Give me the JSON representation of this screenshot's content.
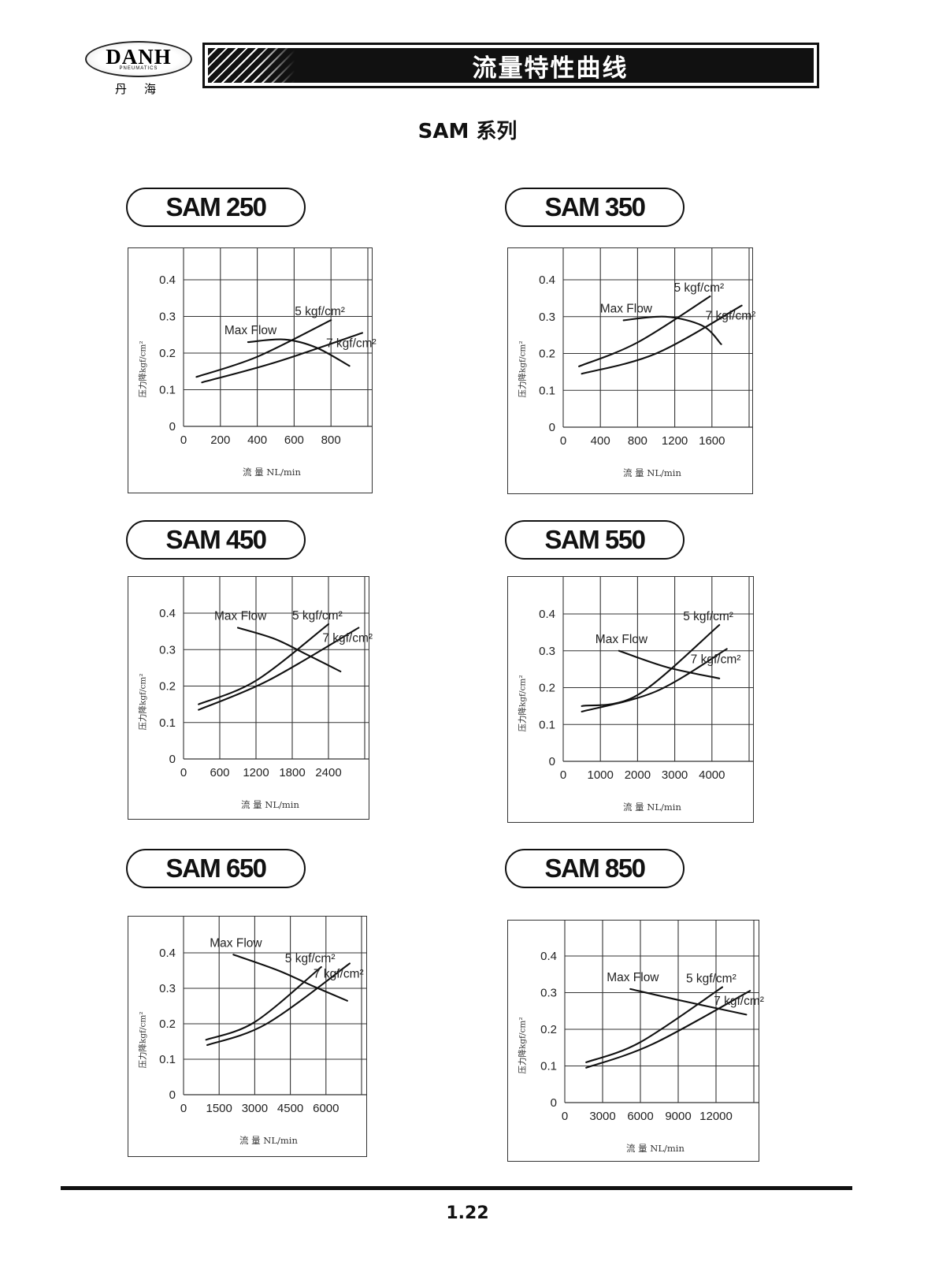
{
  "header": {
    "logo_word": "DANH",
    "logo_subtitle": "PNEUMATICS",
    "logo_chinese": "丹海",
    "title": "流量特性曲线"
  },
  "series_title": "SAM 系列",
  "footer": {
    "page_number": "1.22"
  },
  "axis_texts": {
    "ylabel": "压力降kgf/cm²",
    "xlabel": "流 量 NL/min"
  },
  "chart_data": [
    {
      "type": "line",
      "model": "SAM 250",
      "xlabel": "流 量 NL/min",
      "ylabel": "压力降kgf/cm²",
      "xlim": [
        0,
        1000
      ],
      "ylim": [
        0,
        0.4
      ],
      "xticks": [
        0,
        200,
        400,
        600,
        800
      ],
      "yticks": [
        0,
        0.1,
        0.2,
        0.3,
        0.4
      ],
      "grid": true,
      "series": [
        {
          "name": "5 kgf/cm²",
          "x": [
            70,
            400,
            800
          ],
          "y": [
            0.135,
            0.19,
            0.29
          ]
        },
        {
          "name": "7 kgf/cm²",
          "x": [
            100,
            500,
            970
          ],
          "y": [
            0.12,
            0.175,
            0.255
          ]
        },
        {
          "name": "Max Flow",
          "x": [
            350,
            550,
            720,
            900
          ],
          "y": [
            0.23,
            0.237,
            0.215,
            0.165
          ]
        }
      ]
    },
    {
      "type": "line",
      "model": "SAM 350",
      "xlabel": "流 量 NL/min",
      "ylabel": "压力降kgf/cm²",
      "xlim": [
        0,
        2000
      ],
      "ylim": [
        0,
        0.4
      ],
      "xticks": [
        0,
        400,
        800,
        1200,
        1600
      ],
      "yticks": [
        0,
        0.1,
        0.2,
        0.3,
        0.4
      ],
      "grid": true,
      "series": [
        {
          "name": "5 kgf/cm²",
          "x": [
            170,
            800,
            1580
          ],
          "y": [
            0.165,
            0.23,
            0.355
          ]
        },
        {
          "name": "7 kgf/cm²",
          "x": [
            200,
            1000,
            1920
          ],
          "y": [
            0.145,
            0.2,
            0.33
          ]
        },
        {
          "name": "Max Flow",
          "x": [
            650,
            1100,
            1500,
            1700
          ],
          "y": [
            0.29,
            0.3,
            0.275,
            0.225
          ]
        }
      ]
    },
    {
      "type": "line",
      "model": "SAM 450",
      "xlabel": "流 量 NL/min",
      "ylabel": "压力降kgf/cm²",
      "xlim": [
        0,
        3000
      ],
      "ylim": [
        0,
        0.4
      ],
      "xticks": [
        0,
        600,
        1200,
        1800,
        2400
      ],
      "yticks": [
        0,
        0.1,
        0.2,
        0.3,
        0.4
      ],
      "grid": true,
      "series": [
        {
          "name": "5 kgf/cm²",
          "x": [
            250,
            1200,
            2400
          ],
          "y": [
            0.15,
            0.215,
            0.37
          ]
        },
        {
          "name": "7 kgf/cm²",
          "x": [
            250,
            1400,
            2900
          ],
          "y": [
            0.135,
            0.215,
            0.36
          ]
        },
        {
          "name": "Max Flow",
          "x": [
            900,
            1500,
            2000,
            2600
          ],
          "y": [
            0.36,
            0.33,
            0.29,
            0.24
          ]
        }
      ]
    },
    {
      "type": "line",
      "model": "SAM 550",
      "xlabel": "流 量 NL/min",
      "ylabel": "压力降kgf/cm²",
      "xlim": [
        0,
        5000
      ],
      "ylim": [
        0,
        0.4
      ],
      "xticks": [
        0,
        1000,
        2000,
        3000,
        4000
      ],
      "yticks": [
        0,
        0.1,
        0.2,
        0.3,
        0.4
      ],
      "grid": true,
      "series": [
        {
          "name": "5 kgf/cm²",
          "x": [
            500,
            2000,
            4200
          ],
          "y": [
            0.15,
            0.18,
            0.37
          ]
        },
        {
          "name": "7 kgf/cm²",
          "x": [
            500,
            2500,
            4400
          ],
          "y": [
            0.135,
            0.19,
            0.305
          ]
        },
        {
          "name": "Max Flow",
          "x": [
            1500,
            2800,
            4200
          ],
          "y": [
            0.3,
            0.255,
            0.225
          ]
        }
      ]
    },
    {
      "type": "line",
      "model": "SAM 650",
      "xlabel": "流 量 NL/min",
      "ylabel": "压力降kgf/cm²",
      "xlim": [
        0,
        7500
      ],
      "ylim": [
        0,
        0.4
      ],
      "xticks": [
        0,
        1500,
        3000,
        4500,
        6000
      ],
      "yticks": [
        0,
        0.1,
        0.2,
        0.3,
        0.4
      ],
      "grid": true,
      "series": [
        {
          "name": "5 kgf/cm²",
          "x": [
            950,
            3000,
            5800
          ],
          "y": [
            0.155,
            0.205,
            0.36
          ]
        },
        {
          "name": "7 kgf/cm²",
          "x": [
            1000,
            3500,
            7000
          ],
          "y": [
            0.14,
            0.2,
            0.37
          ]
        },
        {
          "name": "Max Flow",
          "x": [
            2100,
            4000,
            5500,
            6900
          ],
          "y": [
            0.395,
            0.35,
            0.305,
            0.265
          ]
        }
      ]
    },
    {
      "type": "line",
      "model": "SAM 850",
      "xlabel": "流 量 NL/min",
      "ylabel": "压力降kgf/cm²",
      "xlim": [
        0,
        15000
      ],
      "ylim": [
        0,
        0.4
      ],
      "xticks": [
        0,
        3000,
        6000,
        9000,
        12000
      ],
      "yticks": [
        0,
        0.1,
        0.2,
        0.3,
        0.4
      ],
      "grid": true,
      "series": [
        {
          "name": "5 kgf/cm²",
          "x": [
            1700,
            6000,
            12500
          ],
          "y": [
            0.11,
            0.165,
            0.315
          ]
        },
        {
          "name": "7 kgf/cm²",
          "x": [
            1700,
            7000,
            14700
          ],
          "y": [
            0.095,
            0.16,
            0.305
          ]
        },
        {
          "name": "Max Flow",
          "x": [
            5200,
            9000,
            14400
          ],
          "y": [
            0.31,
            0.28,
            0.24
          ]
        }
      ]
    }
  ]
}
